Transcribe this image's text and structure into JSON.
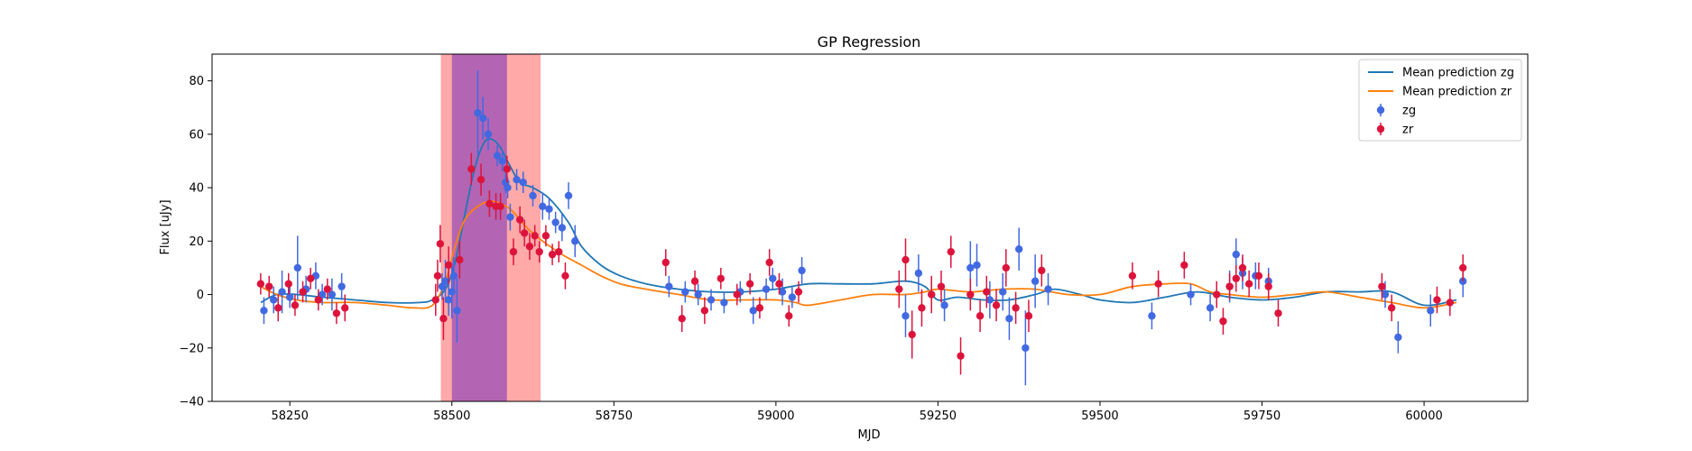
{
  "chart_data": {
    "type": "scatter",
    "title": "GP Regression",
    "xlabel": "MJD",
    "ylabel": "Flux [uJy]",
    "xlim": [
      58130,
      60160
    ],
    "ylim": [
      -40,
      90
    ],
    "xticks": [
      58250,
      58500,
      58750,
      59000,
      59250,
      59500,
      59750,
      60000
    ],
    "yticks": [
      -40,
      -20,
      0,
      20,
      40,
      60,
      80
    ],
    "grid": false,
    "legend_position": "top-right",
    "shaded_regions": [
      {
        "x0": 58483,
        "x1": 58637,
        "color": "#ff9a9a",
        "opacity": 0.85
      },
      {
        "x0": 58500,
        "x1": 58585,
        "color": "#9a4fb8",
        "opacity": 0.75
      }
    ],
    "lines": [
      {
        "name": "Mean prediction zg",
        "color": "#1f77b4",
        "x": [
          58205,
          58230,
          58260,
          58300,
          58350,
          58400,
          58450,
          58470,
          58490,
          58505,
          58520,
          58535,
          58550,
          58563,
          58575,
          58590,
          58605,
          58625,
          58650,
          58680,
          58700,
          58730,
          58760,
          58800,
          58850,
          58900,
          58950,
          59000,
          59050,
          59100,
          59150,
          59200,
          59230,
          59250,
          59280,
          59320,
          59360,
          59400,
          59430,
          59470,
          59500,
          59550,
          59600,
          59650,
          59700,
          59750,
          59800,
          59850,
          59900,
          59950,
          60000,
          60050
        ],
        "y": [
          -3,
          0,
          0,
          -1,
          -2,
          -3,
          -3,
          -2,
          2,
          12,
          30,
          47,
          57,
          58,
          55,
          48,
          42,
          40,
          36,
          27,
          18,
          11,
          7,
          4,
          2,
          1,
          1,
          2,
          4,
          4,
          4,
          5,
          3,
          -2,
          -1,
          -2,
          -2,
          0,
          2,
          0,
          -2,
          -3,
          -1,
          1,
          -1,
          -2,
          -1,
          1,
          1,
          1,
          -4,
          -2
        ]
      },
      {
        "name": "Mean prediction zr",
        "color": "#ff7f0e",
        "x": [
          58205,
          58230,
          58260,
          58300,
          58350,
          58400,
          58440,
          58470,
          58490,
          58505,
          58520,
          58540,
          58560,
          58575,
          58590,
          58605,
          58620,
          58640,
          58670,
          58700,
          58730,
          58760,
          58800,
          58850,
          58900,
          58950,
          59000,
          59030,
          59050,
          59100,
          59150,
          59200,
          59230,
          59250,
          59300,
          59350,
          59400,
          59450,
          59500,
          59550,
          59600,
          59640,
          59670,
          59700,
          59750,
          59800,
          59850,
          59900,
          59950,
          60000,
          60050
        ],
        "y": [
          3,
          0,
          -2,
          -3,
          -3,
          -4,
          -5,
          -4,
          5,
          18,
          28,
          33,
          35,
          34,
          32,
          28,
          24,
          20,
          15,
          11,
          7,
          4,
          2,
          0,
          -2,
          -2,
          -2,
          -3,
          -4,
          -2,
          0,
          0,
          1,
          2,
          1,
          2,
          2,
          0,
          0,
          3,
          4,
          4,
          1,
          0,
          -1,
          0,
          1,
          -1,
          -3,
          -5,
          -3
        ]
      }
    ],
    "series": [
      {
        "name": "zg",
        "color": "#4169e1",
        "x": [
          58210,
          58225,
          58238,
          58250,
          58262,
          58275,
          58290,
          58300,
          58315,
          58330,
          58485,
          58490,
          58495,
          58500,
          58503,
          58508,
          58540,
          58548,
          58556,
          58570,
          58578,
          58583,
          58586,
          58590,
          58600,
          58610,
          58625,
          58640,
          58650,
          58660,
          58670,
          58680,
          58690,
          58835,
          58860,
          58880,
          58900,
          58920,
          58945,
          58965,
          58985,
          58995,
          59010,
          59025,
          59040,
          59200,
          59220,
          59240,
          59260,
          59300,
          59310,
          59330,
          59350,
          59360,
          59375,
          59385,
          59400,
          59420,
          59580,
          59640,
          59670,
          59700,
          59710,
          59720,
          59740,
          59760,
          59940,
          59960,
          60010,
          60060
        ],
        "y": [
          -6,
          -2,
          1,
          -1,
          10,
          2,
          7,
          0,
          0,
          3,
          3,
          5,
          -2,
          1,
          7,
          -6,
          68,
          66,
          60,
          52,
          50,
          42,
          40,
          29,
          43,
          42,
          37,
          33,
          32,
          27,
          25,
          37,
          20,
          3,
          1,
          0,
          -2,
          -3,
          1,
          -6,
          2,
          6,
          1,
          -1,
          9,
          -8,
          8,
          0,
          -4,
          10,
          11,
          -2,
          1,
          -9,
          17,
          -20,
          5,
          2,
          -8,
          0,
          -5,
          3,
          15,
          8,
          7,
          5,
          0,
          -16,
          -6,
          5
        ],
        "yerr": [
          5,
          5,
          8,
          4,
          12,
          5,
          5,
          4,
          6,
          5,
          5,
          8,
          6,
          10,
          7,
          12,
          16,
          8,
          6,
          4,
          4,
          4,
          4,
          5,
          4,
          4,
          4,
          5,
          4,
          4,
          5,
          5,
          6,
          4,
          4,
          4,
          4,
          4,
          4,
          5,
          4,
          4,
          5,
          4,
          5,
          8,
          7,
          6,
          6,
          10,
          8,
          7,
          7,
          8,
          8,
          14,
          10,
          6,
          5,
          4,
          5,
          6,
          6,
          6,
          5,
          5,
          5,
          6,
          6,
          6
        ]
      },
      {
        "name": "zr",
        "color": "#dc143c",
        "x": [
          58205,
          58218,
          58232,
          58248,
          58258,
          58270,
          58282,
          58294,
          58308,
          58322,
          58335,
          58475,
          58478,
          58482,
          58487,
          58495,
          58512,
          58530,
          58545,
          58558,
          58568,
          58575,
          58585,
          58595,
          58605,
          58612,
          58620,
          58628,
          58635,
          58645,
          58655,
          58665,
          58675,
          58830,
          58855,
          58875,
          58890,
          58915,
          58940,
          58960,
          58975,
          58990,
          59005,
          59020,
          59035,
          59190,
          59200,
          59210,
          59225,
          59240,
          59255,
          59270,
          59285,
          59300,
          59315,
          59325,
          59340,
          59355,
          59370,
          59390,
          59410,
          59550,
          59590,
          59630,
          59680,
          59690,
          59700,
          59710,
          59720,
          59730,
          59745,
          59760,
          59775,
          59935,
          59950,
          60020,
          60040,
          60060
        ],
        "y": [
          4,
          3,
          -5,
          4,
          -4,
          1,
          6,
          -2,
          2,
          -7,
          -5,
          -2,
          7,
          19,
          -9,
          11,
          13,
          47,
          43,
          34,
          33,
          33,
          47,
          16,
          28,
          23,
          18,
          22,
          16,
          22,
          15,
          16,
          7,
          12,
          -9,
          5,
          -6,
          6,
          0,
          4,
          -5,
          12,
          4,
          -8,
          1,
          2,
          13,
          -15,
          -5,
          0,
          3,
          16,
          -23,
          0,
          -8,
          1,
          -4,
          10,
          -5,
          -8,
          9,
          7,
          4,
          11,
          0,
          -10,
          3,
          6,
          10,
          4,
          7,
          3,
          -7,
          3,
          -5,
          -2,
          -3,
          10
        ],
        "yerr": [
          4,
          4,
          5,
          4,
          4,
          4,
          4,
          4,
          4,
          4,
          5,
          6,
          6,
          7,
          8,
          7,
          7,
          6,
          6,
          5,
          5,
          5,
          5,
          5,
          5,
          5,
          5,
          4,
          4,
          4,
          4,
          4,
          5,
          5,
          5,
          4,
          5,
          4,
          4,
          4,
          4,
          5,
          4,
          4,
          4,
          7,
          8,
          9,
          7,
          7,
          6,
          6,
          7,
          6,
          6,
          6,
          6,
          7,
          6,
          6,
          6,
          5,
          5,
          5,
          5,
          5,
          5,
          5,
          5,
          5,
          5,
          5,
          5,
          5,
          5,
          5,
          5,
          5
        ]
      }
    ]
  }
}
